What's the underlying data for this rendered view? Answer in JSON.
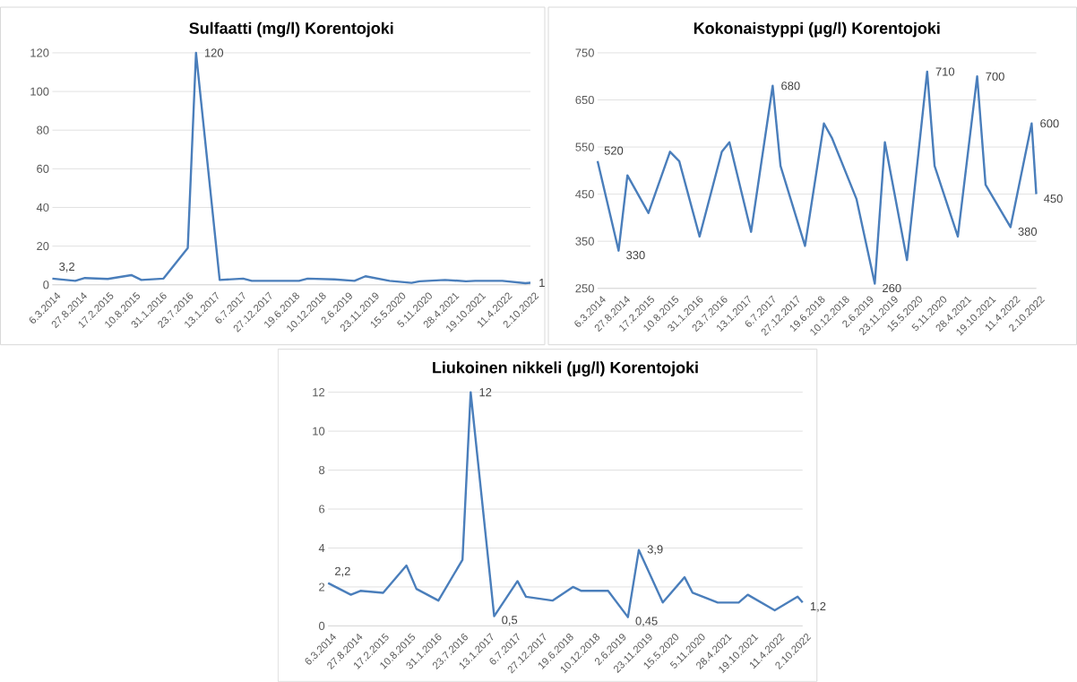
{
  "chart_data": [
    {
      "type": "line",
      "title": "Sulfaatti (mg/l) Korentojoki",
      "x": [
        "2014-03-06",
        "2014-08-03",
        "2014-10-05",
        "2015-03-04",
        "2015-08-05",
        "2015-10-10",
        "2016-03-03",
        "2016-08-09",
        "2016-10-02",
        "2017-03-06",
        "2017-08-07",
        "2017-10-02",
        "2018-03-26",
        "2018-08-08",
        "2018-10-03",
        "2019-03-28",
        "2019-08-06",
        "2019-10-17",
        "2020-03-23",
        "2020-08-14",
        "2020-10-06",
        "2021-03-21",
        "2021-08-06",
        "2021-10-05",
        "2022-04-01",
        "2022-08-30",
        "2022-10-02"
      ],
      "series": [
        {
          "color": "#4a7ebb",
          "values": [
            3.2,
            2,
            3.5,
            3,
            5,
            2.5,
            3.2,
            19,
            120,
            2.5,
            3.2,
            2,
            2,
            2,
            3.2,
            2.8,
            2,
            4.4,
            2,
            1,
            1.8,
            2.5,
            1.8,
            2,
            2,
            0.8,
            1
          ],
          "value_labels": [
            "3,2",
            null,
            null,
            null,
            null,
            null,
            null,
            null,
            "120",
            null,
            null,
            null,
            null,
            null,
            null,
            null,
            null,
            null,
            null,
            null,
            null,
            null,
            null,
            null,
            null,
            null,
            "1"
          ]
        }
      ],
      "xlim": [
        "2014-03-06",
        "2022-10-02"
      ],
      "xticks": [
        {
          "value": "2014-03-06",
          "label": "6.3.2014"
        },
        {
          "value": "2014-08-27",
          "label": "27.8.2014"
        },
        {
          "value": "2015-02-17",
          "label": "17.2.2015"
        },
        {
          "value": "2015-08-10",
          "label": "10.8.2015"
        },
        {
          "value": "2016-01-31",
          "label": "31.1.2016"
        },
        {
          "value": "2016-07-23",
          "label": "23.7.2016"
        },
        {
          "value": "2017-01-13",
          "label": "13.1.2017"
        },
        {
          "value": "2017-07-06",
          "label": "6.7.2017"
        },
        {
          "value": "2017-12-27",
          "label": "27.12.2017"
        },
        {
          "value": "2018-06-19",
          "label": "19.6.2018"
        },
        {
          "value": "2018-12-10",
          "label": "10.12.2018"
        },
        {
          "value": "2019-06-02",
          "label": "2.6.2019"
        },
        {
          "value": "2019-11-23",
          "label": "23.11.2019"
        },
        {
          "value": "2020-05-15",
          "label": "15.5.2020"
        },
        {
          "value": "2020-11-05",
          "label": "5.11.2020"
        },
        {
          "value": "2021-04-28",
          "label": "28.4.2021"
        },
        {
          "value": "2021-10-19",
          "label": "19.10.2021"
        },
        {
          "value": "2022-04-11",
          "label": "11.4.2022"
        },
        {
          "value": "2022-10-02",
          "label": "2.10.2022"
        }
      ],
      "ylim": [
        0,
        120
      ],
      "yticks": [
        0,
        20,
        40,
        60,
        80,
        100,
        120
      ],
      "grid": "y"
    },
    {
      "type": "line",
      "title": "Kokonaistyppi (µg/l) Korentojoki",
      "x": [
        "2014-03-06",
        "2014-08-03",
        "2014-10-05",
        "2015-03-04",
        "2015-08-05",
        "2015-10-10",
        "2016-03-03",
        "2016-08-09",
        "2016-10-02",
        "2017-03-06",
        "2017-08-07",
        "2017-10-02",
        "2018-03-26",
        "2018-08-08",
        "2018-10-03",
        "2019-03-28",
        "2019-08-06",
        "2019-10-17",
        "2020-03-23",
        "2020-08-14",
        "2020-10-06",
        "2021-03-21",
        "2021-08-06",
        "2021-10-05",
        "2022-04-01",
        "2022-08-30",
        "2022-10-02"
      ],
      "series": [
        {
          "color": "#4a7ebb",
          "values": [
            520,
            330,
            490,
            410,
            540,
            520,
            360,
            540,
            560,
            370,
            680,
            510,
            340,
            600,
            570,
            440,
            260,
            560,
            310,
            710,
            510,
            360,
            700,
            470,
            380,
            600,
            450
          ],
          "value_labels": [
            "520",
            "330",
            null,
            null,
            null,
            null,
            null,
            null,
            null,
            null,
            "680",
            null,
            null,
            null,
            null,
            null,
            "260",
            null,
            null,
            "710",
            null,
            null,
            "700",
            null,
            "380",
            "600",
            "450"
          ]
        }
      ],
      "xlim": [
        "2014-03-06",
        "2022-10-02"
      ],
      "xticks": [
        {
          "value": "2014-03-06",
          "label": "6.3.2014"
        },
        {
          "value": "2014-08-27",
          "label": "27.8.2014"
        },
        {
          "value": "2015-02-17",
          "label": "17.2.2015"
        },
        {
          "value": "2015-08-10",
          "label": "10.8.2015"
        },
        {
          "value": "2016-01-31",
          "label": "31.1.2016"
        },
        {
          "value": "2016-07-23",
          "label": "23.7.2016"
        },
        {
          "value": "2017-01-13",
          "label": "13.1.2017"
        },
        {
          "value": "2017-07-06",
          "label": "6.7.2017"
        },
        {
          "value": "2017-12-27",
          "label": "27.12.2017"
        },
        {
          "value": "2018-06-19",
          "label": "19.6.2018"
        },
        {
          "value": "2018-12-10",
          "label": "10.12.2018"
        },
        {
          "value": "2019-06-02",
          "label": "2.6.2019"
        },
        {
          "value": "2019-11-23",
          "label": "23.11.2019"
        },
        {
          "value": "2020-05-15",
          "label": "15.5.2020"
        },
        {
          "value": "2020-11-05",
          "label": "5.11.2020"
        },
        {
          "value": "2021-04-28",
          "label": "28.4.2021"
        },
        {
          "value": "2021-10-19",
          "label": "19.10.2021"
        },
        {
          "value": "2022-04-11",
          "label": "11.4.2022"
        },
        {
          "value": "2022-10-02",
          "label": "2.10.2022"
        }
      ],
      "ylim": [
        250,
        750
      ],
      "yticks": [
        250,
        350,
        450,
        550,
        650,
        750
      ],
      "grid": "y"
    },
    {
      "type": "line",
      "title": "Liukoinen nikkeli (µg/l) Korentojoki",
      "x": [
        "2014-03-06",
        "2014-08-03",
        "2014-10-05",
        "2015-03-04",
        "2015-08-05",
        "2015-10-10",
        "2016-03-03",
        "2016-08-09",
        "2016-10-02",
        "2017-03-06",
        "2017-08-07",
        "2017-10-02",
        "2018-03-26",
        "2018-08-08",
        "2018-10-03",
        "2019-03-28",
        "2019-08-06",
        "2019-10-17",
        "2020-03-23",
        "2020-08-14",
        "2020-10-06",
        "2021-03-21",
        "2021-08-06",
        "2021-10-05",
        "2022-04-01",
        "2022-08-30",
        "2022-10-02"
      ],
      "series": [
        {
          "color": "#4a7ebb",
          "values": [
            2.2,
            1.6,
            1.8,
            1.7,
            3.1,
            1.9,
            1.3,
            3.4,
            12,
            0.5,
            2.3,
            1.5,
            1.3,
            2,
            1.8,
            1.8,
            0.45,
            3.9,
            1.2,
            2.5,
            1.7,
            1.2,
            1.2,
            1.6,
            0.8,
            1.5,
            1.2
          ],
          "value_labels": [
            "2,2",
            null,
            null,
            null,
            null,
            null,
            null,
            null,
            "12",
            "0,5",
            null,
            null,
            null,
            null,
            null,
            null,
            "0,45",
            "3,9",
            null,
            null,
            null,
            null,
            null,
            null,
            null,
            null,
            "1,2"
          ]
        }
      ],
      "xlim": [
        "2014-03-06",
        "2022-10-02"
      ],
      "xticks": [
        {
          "value": "2014-03-06",
          "label": "6.3.2014"
        },
        {
          "value": "2014-08-27",
          "label": "27.8.2014"
        },
        {
          "value": "2015-02-17",
          "label": "17.2.2015"
        },
        {
          "value": "2015-08-10",
          "label": "10.8.2015"
        },
        {
          "value": "2016-01-31",
          "label": "31.1.2016"
        },
        {
          "value": "2016-07-23",
          "label": "23.7.2016"
        },
        {
          "value": "2017-01-13",
          "label": "13.1.2017"
        },
        {
          "value": "2017-07-06",
          "label": "6.7.2017"
        },
        {
          "value": "2017-12-27",
          "label": "27.12.2017"
        },
        {
          "value": "2018-06-19",
          "label": "19.6.2018"
        },
        {
          "value": "2018-12-10",
          "label": "10.12.2018"
        },
        {
          "value": "2019-06-02",
          "label": "2.6.2019"
        },
        {
          "value": "2019-11-23",
          "label": "23.11.2019"
        },
        {
          "value": "2020-05-15",
          "label": "15.5.2020"
        },
        {
          "value": "2020-11-05",
          "label": "5.11.2020"
        },
        {
          "value": "2021-04-28",
          "label": "28.4.2021"
        },
        {
          "value": "2021-10-19",
          "label": "19.10.2021"
        },
        {
          "value": "2022-04-11",
          "label": "11.4.2022"
        },
        {
          "value": "2022-10-02",
          "label": "2.10.2022"
        }
      ],
      "ylim": [
        0,
        12
      ],
      "yticks": [
        0,
        2,
        4,
        6,
        8,
        10,
        12
      ],
      "grid": "y"
    }
  ]
}
